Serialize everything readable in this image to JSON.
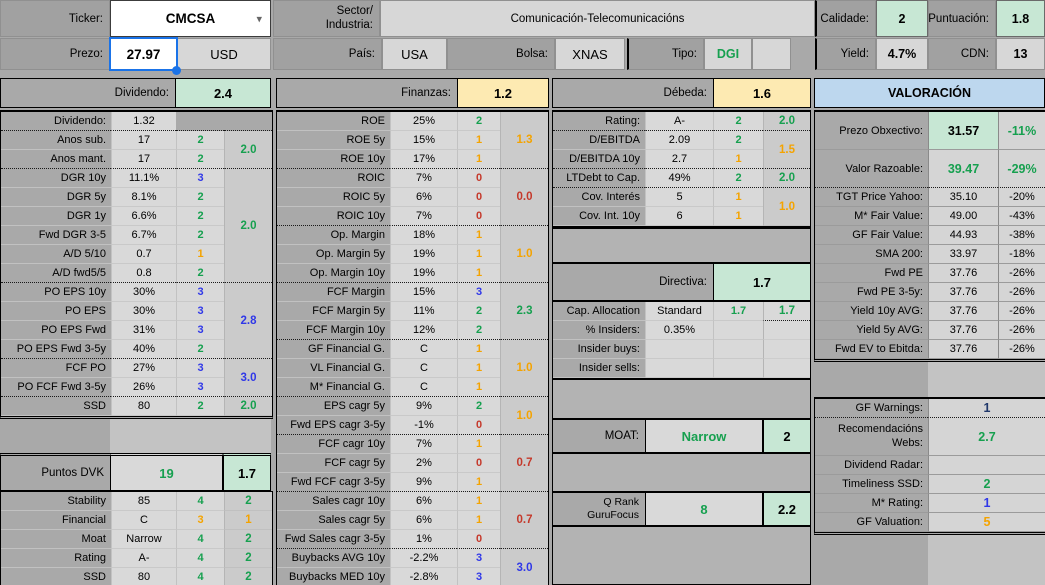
{
  "colors": {
    "green": "#16a04f",
    "orange": "#f4a300",
    "red": "#c5392b",
    "blue": "#3038e8",
    "navy": "#20386b",
    "mint": "#c7e7d4",
    "cream": "#fdeab2",
    "header_blue": "#bdd7ee",
    "selection_blue": "#1a73e8"
  },
  "top": {
    "ticker_label": "Ticker:",
    "ticker": "CMCSA",
    "sector_label": "Sector/\nIndustria:",
    "sector": "Comunicación-Telecomunicacións",
    "calidade_label": "Calidade:",
    "calidade": "2",
    "puntuacion_label": "Puntuación:",
    "puntuacion": "1.8",
    "prezo_label": "Prezo:",
    "prezo": "27.97",
    "currency": "USD",
    "pais_label": "País:",
    "pais": "USA",
    "bolsa_label": "Bolsa:",
    "bolsa": "XNAS",
    "tipo_label": "Tipo:",
    "tipo": "DGI",
    "yield_label": "Yield:",
    "yield": "4.7%",
    "cdn_label": "CDN:",
    "cdn": "13"
  },
  "sections": {
    "dividend": {
      "label": "Dividendo:",
      "score": "2.4",
      "rows": [
        {
          "l": "Dividendo:",
          "v": "1.32",
          "s": "",
          "sc": "k",
          "bare": true,
          "sep": true,
          "g": "",
          "gc": "k",
          "gspan": 1,
          "gsep": true
        },
        {
          "l": "Anos sub.",
          "v": "17",
          "s": "2",
          "sc": "green",
          "g": "2.0",
          "gc": "green",
          "gspan": 2,
          "gsep": true
        },
        {
          "l": "Anos mant.",
          "v": "17",
          "s": "2",
          "sc": "green",
          "sep": true
        },
        {
          "l": "DGR 10y",
          "v": "11.1%",
          "s": "3",
          "sc": "blue",
          "g": "2.0",
          "gc": "green",
          "gspan": 6,
          "gsep": true
        },
        {
          "l": "DGR 5y",
          "v": "8.1%",
          "s": "2",
          "sc": "green"
        },
        {
          "l": "DGR 1y",
          "v": "6.6%",
          "s": "2",
          "sc": "green"
        },
        {
          "l": "Fwd DGR 3-5",
          "v": "6.7%",
          "s": "2",
          "sc": "green"
        },
        {
          "l": "A/D 5/10",
          "v": "0.7",
          "s": "1",
          "sc": "orange"
        },
        {
          "l": "A/D fwd5/5",
          "v": "0.8",
          "s": "2",
          "sc": "green",
          "sep": true
        },
        {
          "l": "PO EPS 10y",
          "v": "30%",
          "s": "3",
          "sc": "blue",
          "g": "2.8",
          "gc": "blue",
          "gspan": 4,
          "gsep": true
        },
        {
          "l": "PO EPS",
          "v": "30%",
          "s": "3",
          "sc": "blue"
        },
        {
          "l": "PO EPS Fwd",
          "v": "31%",
          "s": "3",
          "sc": "blue"
        },
        {
          "l": "PO EPS Fwd 3-5y",
          "v": "40%",
          "s": "2",
          "sc": "green",
          "sep": true
        },
        {
          "l": "FCF PO",
          "v": "27%",
          "s": "3",
          "sc": "blue",
          "g": "3.0",
          "gc": "blue",
          "gspan": 2,
          "gsep": true
        },
        {
          "l": "PO FCF Fwd 3-5y",
          "v": "26%",
          "s": "3",
          "sc": "blue",
          "sep": true
        },
        {
          "l": "SSD",
          "v": "80",
          "s": "2",
          "sc": "green",
          "g": "2.0",
          "gc": "green",
          "gspan": 1
        }
      ]
    },
    "dvk": {
      "label": "Puntos DVK",
      "points": "19",
      "score": "1.7",
      "rows": [
        {
          "l": "Stability",
          "v": "85",
          "s": "4",
          "sc": "green",
          "g": "2",
          "gc": "green",
          "gspan": 1
        },
        {
          "l": "Financial",
          "v": "C",
          "s": "3",
          "sc": "orange",
          "g": "1",
          "gc": "orange",
          "gspan": 1
        },
        {
          "l": "Moat",
          "v": "Narrow",
          "s": "4",
          "sc": "green",
          "g": "2",
          "gc": "green",
          "gspan": 1
        },
        {
          "l": "Rating",
          "v": "A-",
          "s": "4",
          "sc": "green",
          "g": "2",
          "gc": "green",
          "gspan": 1
        },
        {
          "l": "SSD",
          "v": "80",
          "s": "4",
          "sc": "green",
          "g": "2",
          "gc": "green",
          "gspan": 1
        }
      ]
    },
    "finance": {
      "label": "Finanzas:",
      "score": "1.2",
      "rows": [
        {
          "l": "ROE",
          "v": "25%",
          "s": "2",
          "sc": "green",
          "g": "1.3",
          "gc": "orange",
          "gspan": 3,
          "gsep": true
        },
        {
          "l": "ROE 5y",
          "v": "15%",
          "s": "1",
          "sc": "orange"
        },
        {
          "l": "ROE 10y",
          "v": "17%",
          "s": "1",
          "sc": "orange",
          "sep": true
        },
        {
          "l": "ROIC",
          "v": "7%",
          "s": "0",
          "sc": "red",
          "g": "0.0",
          "gc": "red",
          "gspan": 3,
          "gsep": true
        },
        {
          "l": "ROIC 5y",
          "v": "6%",
          "s": "0",
          "sc": "red"
        },
        {
          "l": "ROIC 10y",
          "v": "7%",
          "s": "0",
          "sc": "red",
          "sep": true
        },
        {
          "l": "Op. Margin",
          "v": "18%",
          "s": "1",
          "sc": "orange",
          "g": "1.0",
          "gc": "orange",
          "gspan": 3,
          "gsep": true
        },
        {
          "l": "Op. Margin 5y",
          "v": "19%",
          "s": "1",
          "sc": "orange"
        },
        {
          "l": "Op. Margin 10y",
          "v": "19%",
          "s": "1",
          "sc": "orange",
          "sep": true
        },
        {
          "l": "FCF Margin",
          "v": "15%",
          "s": "3",
          "sc": "blue",
          "g": "2.3",
          "gc": "green",
          "gspan": 3,
          "gsep": true
        },
        {
          "l": "FCF Margin 5y",
          "v": "11%",
          "s": "2",
          "sc": "green"
        },
        {
          "l": "FCF Margin 10y",
          "v": "12%",
          "s": "2",
          "sc": "green",
          "sep": true
        },
        {
          "l": "GF Financial G.",
          "v": "C",
          "s": "1",
          "sc": "orange",
          "g": "1.0",
          "gc": "orange",
          "gspan": 3,
          "gsep": true
        },
        {
          "l": "VL Financial G.",
          "v": "C",
          "s": "1",
          "sc": "orange"
        },
        {
          "l": "M* Financial G.",
          "v": "C",
          "s": "1",
          "sc": "orange",
          "sep": true
        },
        {
          "l": "EPS cagr 5y",
          "v": "9%",
          "s": "2",
          "sc": "green",
          "g": "1.0",
          "gc": "orange",
          "gspan": 2,
          "gsep": true
        },
        {
          "l": "Fwd EPS cagr 3-5y",
          "v": "-1%",
          "s": "0",
          "sc": "red",
          "sep": true
        },
        {
          "l": "FCF cagr 10y",
          "v": "7%",
          "s": "1",
          "sc": "orange",
          "g": "0.7",
          "gc": "red",
          "gspan": 3,
          "gsep": true
        },
        {
          "l": "FCF cagr 5y",
          "v": "2%",
          "s": "0",
          "sc": "red"
        },
        {
          "l": "Fwd FCF cagr 3-5y",
          "v": "9%",
          "s": "1",
          "sc": "orange",
          "sep": true
        },
        {
          "l": "Sales cagr 10y",
          "v": "6%",
          "s": "1",
          "sc": "orange",
          "g": "0.7",
          "gc": "red",
          "gspan": 3,
          "gsep": true
        },
        {
          "l": "Sales cagr 5y",
          "v": "6%",
          "s": "1",
          "sc": "orange"
        },
        {
          "l": "Fwd Sales cagr 3-5y",
          "v": "1%",
          "s": "0",
          "sc": "red",
          "sep": true
        },
        {
          "l": "Buybacks AVG 10y",
          "v": "-2.2%",
          "s": "3",
          "sc": "blue",
          "g": "3.0",
          "gc": "blue",
          "gspan": 2
        },
        {
          "l": "Buybacks MED 10y",
          "v": "-2.8%",
          "s": "3",
          "sc": "blue"
        }
      ]
    },
    "debt": {
      "label": "Débeda:",
      "score": "1.6",
      "rows": [
        {
          "l": "Rating:",
          "v": "A-",
          "s": "2",
          "sc": "green",
          "sep": true,
          "g": "2.0",
          "gc": "green",
          "gspan": 1,
          "gsep": true
        },
        {
          "l": "D/EBITDA",
          "v": "2.09",
          "s": "2",
          "sc": "green",
          "g": "1.5",
          "gc": "orange",
          "gspan": 2,
          "gsep": true
        },
        {
          "l": "D/EBITDA 10y",
          "v": "2.7",
          "s": "1",
          "sc": "orange",
          "sep": true
        },
        {
          "l": "LTDebt to Cap.",
          "v": "49%",
          "s": "2",
          "sc": "green",
          "sep": true,
          "g": "2.0",
          "gc": "green",
          "gspan": 1,
          "gsep": true
        },
        {
          "l": "Cov. Interés",
          "v": "5",
          "s": "1",
          "sc": "orange",
          "g": "1.0",
          "gc": "orange",
          "gspan": 2
        },
        {
          "l": "Cov. Int. 10y",
          "v": "6",
          "s": "1",
          "sc": "orange"
        }
      ]
    },
    "directive": {
      "label": "Directiva:",
      "score": "1.7",
      "rows": [
        {
          "l": "Cap. Allocation",
          "v": "Standard",
          "s": "1.7",
          "sc": "green",
          "g": "1.7",
          "gc": "green",
          "gspan": 1,
          "gsep": true
        },
        {
          "l": "% Insiders:",
          "v": "0.35%",
          "s": "",
          "sc": "k",
          "g": "",
          "gc": "k",
          "gspan": 1
        },
        {
          "l": "Insider buys:",
          "v": "",
          "s": "",
          "sc": "k",
          "g": "",
          "gc": "k",
          "gspan": 1
        },
        {
          "l": "Insider sells:",
          "v": "",
          "s": "",
          "sc": "k",
          "g": "",
          "gc": "k",
          "gspan": 1
        }
      ]
    },
    "moat": {
      "label": "MOAT:",
      "value": "Narrow",
      "score": "2"
    },
    "qrank": {
      "label": "Q Rank\nGuruFocus",
      "value": "8",
      "score": "2.2"
    },
    "valuation": {
      "title": "VALORACIÓN",
      "rows": [
        {
          "l": "Prezo Obxectivo:",
          "v": "31.57",
          "p": "-11%",
          "h": 2,
          "mint": true,
          "vb": true,
          "pb": true,
          "pc": "green"
        },
        {
          "l": "Valor Razoable:",
          "v": "39.47",
          "p": "-29%",
          "h": 2,
          "vb": true,
          "vc": "green",
          "pb": true,
          "pc": "green",
          "sep": true
        },
        {
          "l": "TGT Price Yahoo:",
          "v": "35.10",
          "p": "-20%"
        },
        {
          "l": "M* Fair Value:",
          "v": "49.00",
          "p": "-43%"
        },
        {
          "l": "GF Fair Value:",
          "v": "44.93",
          "p": "-38%"
        },
        {
          "l": "SMA 200:",
          "v": "33.97",
          "p": "-18%"
        },
        {
          "l": "Fwd PE",
          "v": "37.76",
          "p": "-26%"
        },
        {
          "l": "Fwd PE 3-5y:",
          "v": "37.76",
          "p": "-26%"
        },
        {
          "l": "Yield 10y AVG:",
          "v": "37.76",
          "p": "-26%"
        },
        {
          "l": "Yield 5y AVG:",
          "v": "37.76",
          "p": "-26%"
        },
        {
          "l": "Fwd EV to Ebitda:",
          "v": "37.76",
          "p": "-26%"
        }
      ],
      "rows2": [
        {
          "l": "GF Warnings:",
          "v": "1",
          "vc": "navy",
          "vb": true,
          "sep": true
        },
        {
          "l": "Recomendacións\nWebs:",
          "v": "2.7",
          "vc": "green",
          "vb": true,
          "h": 2,
          "pre": true
        },
        {
          "l": "Dividend Radar:",
          "v": ""
        },
        {
          "l": "Timeliness SSD:",
          "v": "2",
          "vc": "green",
          "vb": true
        },
        {
          "l": "M* Rating:",
          "v": "1",
          "vc": "blue",
          "vb": true
        },
        {
          "l": "GF Valuation:",
          "v": "5",
          "vc": "orange",
          "vb": true
        }
      ]
    }
  }
}
